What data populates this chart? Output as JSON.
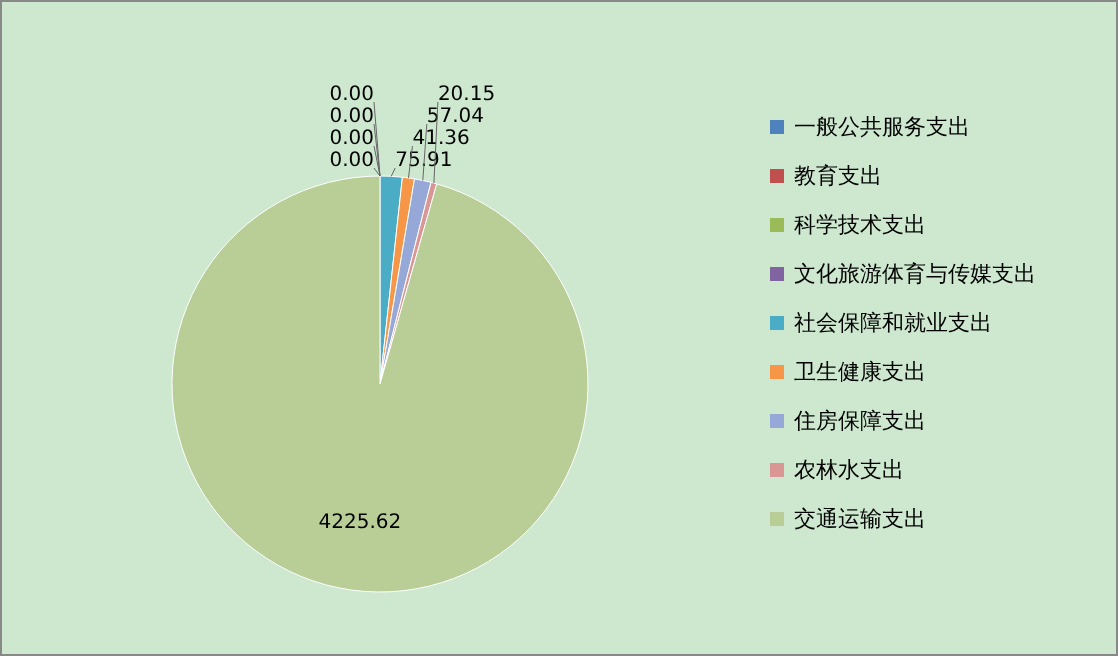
{
  "chart_data": {
    "type": "pie",
    "legend": "right",
    "categories": [
      "一般公共服务支出",
      "教育支出",
      "科学技术支出",
      "文化旅游体育与传媒支出",
      "社会保障和就业支出",
      "卫生健康支出",
      "住房保障支出",
      "农林水支出",
      "交通运输支出"
    ],
    "values": [
      0.0,
      0.0,
      0.0,
      0.0,
      75.91,
      41.36,
      57.04,
      20.15,
      4225.62
    ],
    "value_labels": [
      "0.00",
      "0.00",
      "0.00",
      "0.00",
      "75.91",
      "41.36",
      "57.04",
      "20.15",
      "4225.62"
    ],
    "colors": [
      "#4f81bd",
      "#c0504d",
      "#9bbb59",
      "#8064a2",
      "#4bacc6",
      "#f79646",
      "#95a8d8",
      "#d99694",
      "#b9cd96"
    ]
  }
}
